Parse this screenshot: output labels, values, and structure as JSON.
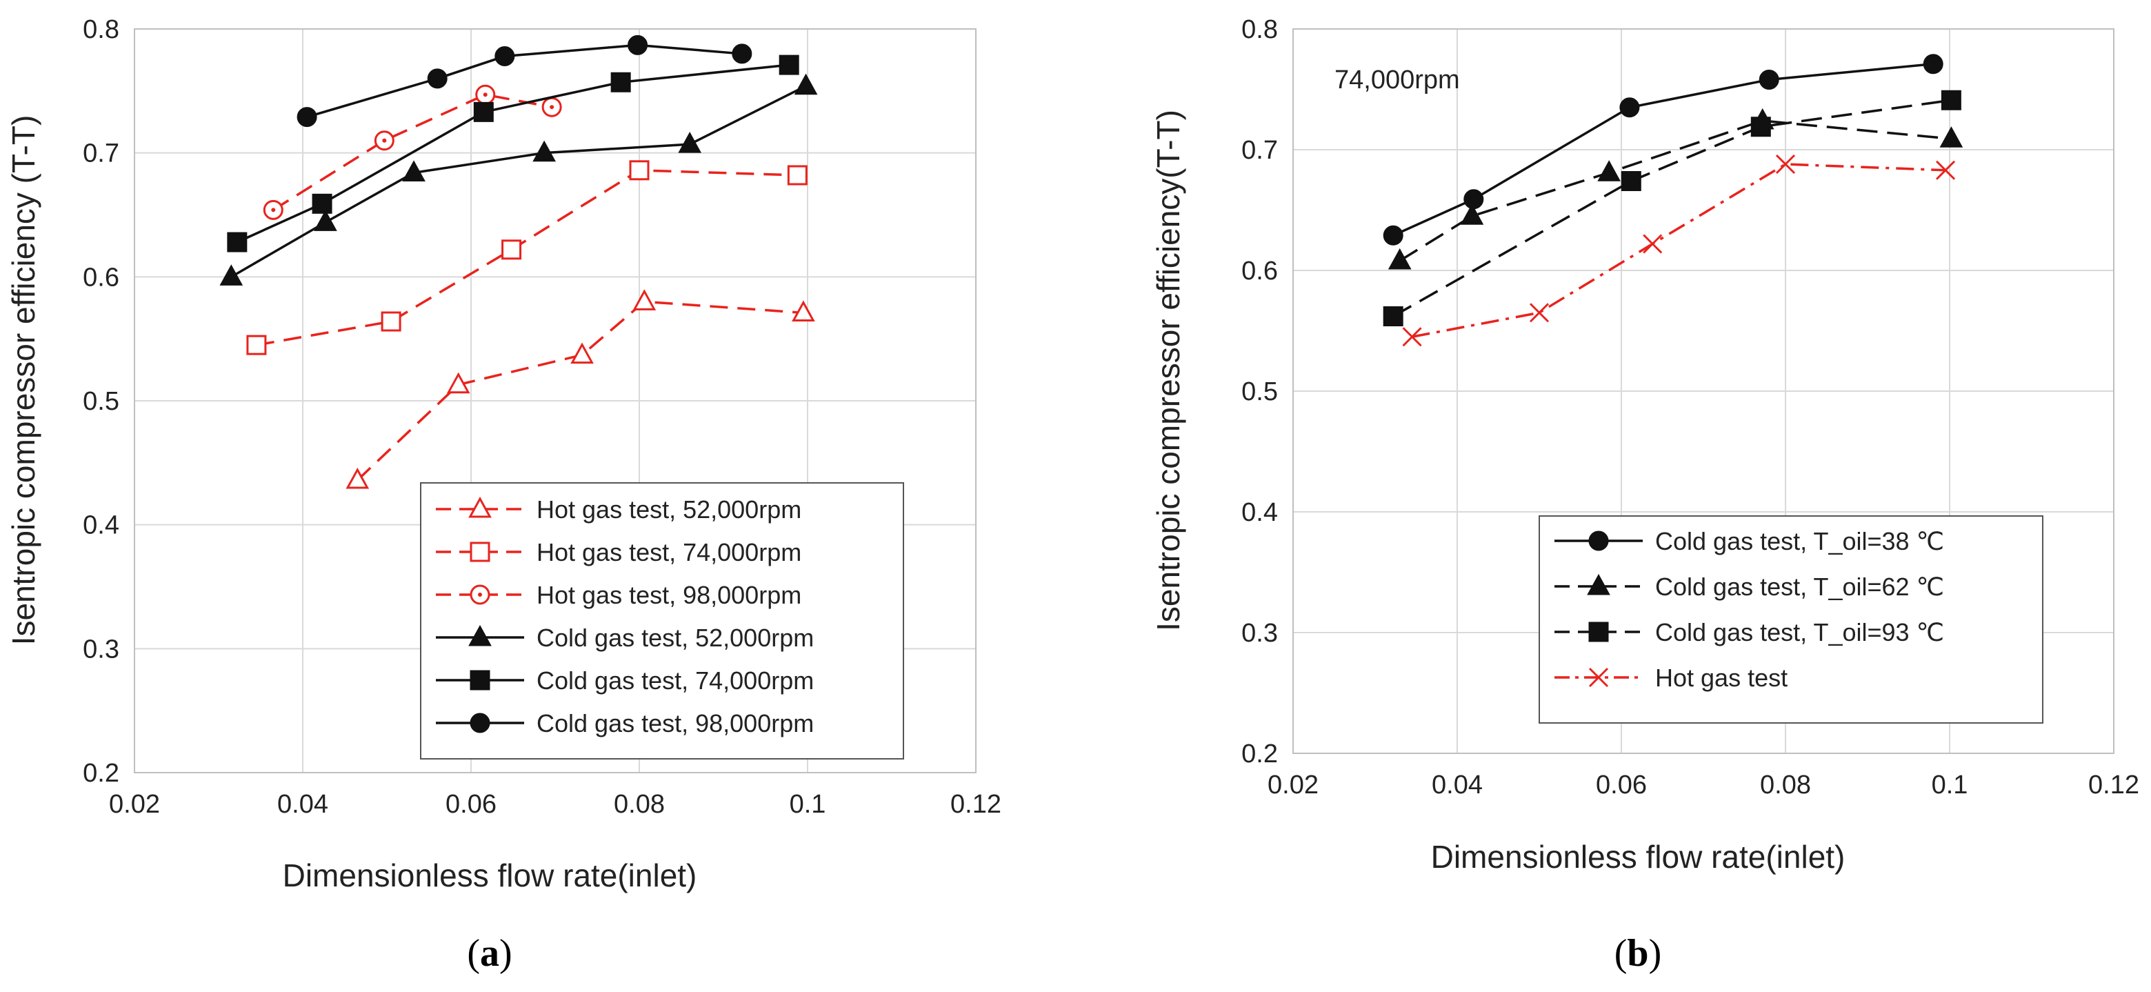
{
  "colors": {
    "hot": "#e8231d",
    "cold": "#111111",
    "grid": "#d9d9d9"
  },
  "chart_data": [
    {
      "type": "line",
      "panel_label": {
        "open": "(",
        "letter": "a",
        "close": ")"
      },
      "xlabel": "Dimensionless flow rate(inlet)",
      "ylabel": "Isentropic compressor efficiency (T-T)",
      "xlim": [
        0.02,
        0.12
      ],
      "ylim": [
        0.2,
        0.8
      ],
      "xticks": [
        0.02,
        0.04,
        0.06,
        0.08,
        0.1,
        0.12
      ],
      "xtick_labels": [
        "0.02",
        "0.04",
        "0.06",
        "0.08",
        "0.1",
        "0.12"
      ],
      "yticks": [
        0.2,
        0.3,
        0.4,
        0.5,
        0.6,
        0.7,
        0.8
      ],
      "ytick_labels": [
        "0.2",
        "0.3",
        "0.4",
        "0.5",
        "0.6",
        "0.7",
        "0.8"
      ],
      "grid": true,
      "legend_position": "bottom-right",
      "series": [
        {
          "name": "Hot gas test, 52,000rpm",
          "color": "#e8231d",
          "dash": "dashed",
          "marker": "triangle-open",
          "x": [
            0.0465,
            0.0585,
            0.0732,
            0.0806,
            0.0995
          ],
          "y": [
            0.436,
            0.513,
            0.537,
            0.58,
            0.571
          ]
        },
        {
          "name": "Hot gas test, 74,000rpm",
          "color": "#e8231d",
          "dash": "dashed",
          "marker": "square-open",
          "x": [
            0.0345,
            0.0505,
            0.0648,
            0.08,
            0.0988
          ],
          "y": [
            0.545,
            0.564,
            0.622,
            0.686,
            0.682
          ]
        },
        {
          "name": "Hot gas test, 98,000rpm",
          "color": "#e8231d",
          "dash": "dashed",
          "marker": "circle-open",
          "x": [
            0.0365,
            0.0497,
            0.0617,
            0.0696
          ],
          "y": [
            0.654,
            0.71,
            0.747,
            0.737
          ]
        },
        {
          "name": "Cold gas test, 52,000rpm",
          "color": "#111111",
          "dash": "solid",
          "marker": "triangle",
          "x": [
            0.0315,
            0.0427,
            0.0532,
            0.0687,
            0.086,
            0.0998
          ],
          "y": [
            0.6,
            0.644,
            0.684,
            0.7,
            0.707,
            0.754
          ]
        },
        {
          "name": "Cold gas test, 74,000rpm",
          "color": "#111111",
          "dash": "solid",
          "marker": "square",
          "x": [
            0.0322,
            0.0423,
            0.0615,
            0.0778,
            0.0978
          ],
          "y": [
            0.628,
            0.659,
            0.733,
            0.757,
            0.771
          ]
        },
        {
          "name": "Cold gas test, 98,000rpm",
          "color": "#111111",
          "dash": "solid",
          "marker": "circle",
          "x": [
            0.0405,
            0.056,
            0.064,
            0.0798,
            0.0922
          ],
          "y": [
            0.729,
            0.76,
            0.778,
            0.787,
            0.78
          ]
        }
      ]
    },
    {
      "type": "line",
      "panel_label": {
        "open": "(",
        "letter": "b",
        "close": ")"
      },
      "annotation": "74,000rpm",
      "xlabel": "Dimensionless flow rate(inlet)",
      "ylabel": "Isentropic compressor efficiency(T-T)",
      "xlim": [
        0.02,
        0.12
      ],
      "ylim": [
        0.2,
        0.8
      ],
      "xticks": [
        0.02,
        0.04,
        0.06,
        0.08,
        0.1,
        0.12
      ],
      "xtick_labels": [
        "0.02",
        "0.04",
        "0.06",
        "0.08",
        "0.1",
        "0.12"
      ],
      "yticks": [
        0.2,
        0.3,
        0.4,
        0.5,
        0.6,
        0.7,
        0.8
      ],
      "ytick_labels": [
        "0.2",
        "0.3",
        "0.4",
        "0.5",
        "0.6",
        "0.7",
        "0.8"
      ],
      "grid": true,
      "legend_position": "bottom-right",
      "series": [
        {
          "name": "Cold gas test, T_oil=38 ℃",
          "color": "#111111",
          "dash": "solid",
          "marker": "circle",
          "x": [
            0.0322,
            0.042,
            0.061,
            0.078,
            0.098
          ],
          "y": [
            0.629,
            0.659,
            0.735,
            0.758,
            0.771
          ]
        },
        {
          "name": "Cold gas test, T_oil=62 ℃",
          "color": "#111111",
          "dash": "longdash",
          "marker": "triangle",
          "x": [
            0.033,
            0.0418,
            0.0585,
            0.0772,
            0.1002
          ],
          "y": [
            0.608,
            0.645,
            0.681,
            0.724,
            0.709
          ]
        },
        {
          "name": "Cold gas test, T_oil=93 ℃",
          "color": "#111111",
          "dash": "longdash",
          "marker": "square",
          "x": [
            0.0322,
            0.0612,
            0.077,
            0.1002
          ],
          "y": [
            0.562,
            0.674,
            0.719,
            0.741
          ]
        },
        {
          "name": "Hot gas test",
          "color": "#e8231d",
          "dash": "dashdot",
          "marker": "cross",
          "x": [
            0.0345,
            0.05,
            0.0638,
            0.08,
            0.0995
          ],
          "y": [
            0.545,
            0.565,
            0.622,
            0.688,
            0.683
          ]
        }
      ]
    }
  ]
}
